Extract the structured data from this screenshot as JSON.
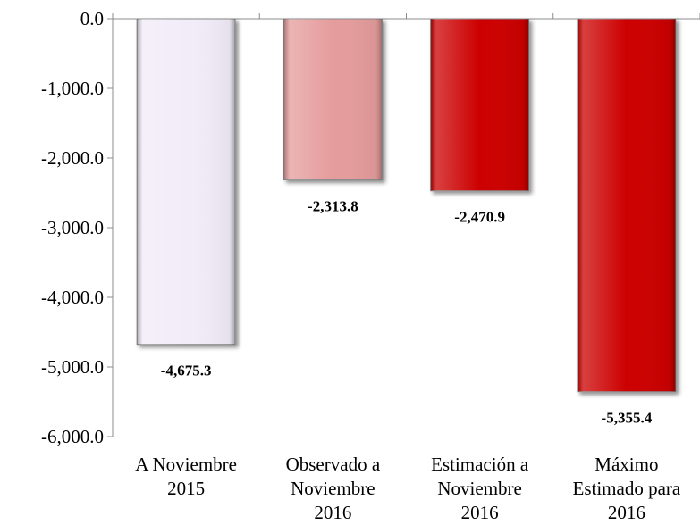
{
  "chart_data": {
    "type": "bar",
    "categories": [
      [
        "A Noviembre",
        "2015"
      ],
      [
        "Observado a",
        "Noviembre",
        "2016"
      ],
      [
        "Estimación a",
        "Noviembre",
        "2016"
      ],
      [
        "Máximo",
        "Estimado para",
        "2016"
      ]
    ],
    "values": [
      -4675.3,
      -2313.8,
      -2470.9,
      -5355.4
    ],
    "data_labels": [
      "-4,675.3",
      "-2,313.8",
      "-2,470.9",
      "-5,355.4"
    ],
    "bar_colors": [
      "#f1ecf8",
      "#e59c9c",
      "#cc0000",
      "#cc0000"
    ],
    "ylim": [
      -6000,
      0
    ],
    "yticks": [
      0,
      -1000,
      -2000,
      -3000,
      -4000,
      -5000,
      -6000
    ],
    "ytick_labels": [
      "0.0",
      "-1,000.0",
      "-2,000.0",
      "-3,000.0",
      "-4,000.0",
      "-5,000.0",
      "-6,000.0"
    ],
    "grid": false,
    "legend": "none"
  }
}
